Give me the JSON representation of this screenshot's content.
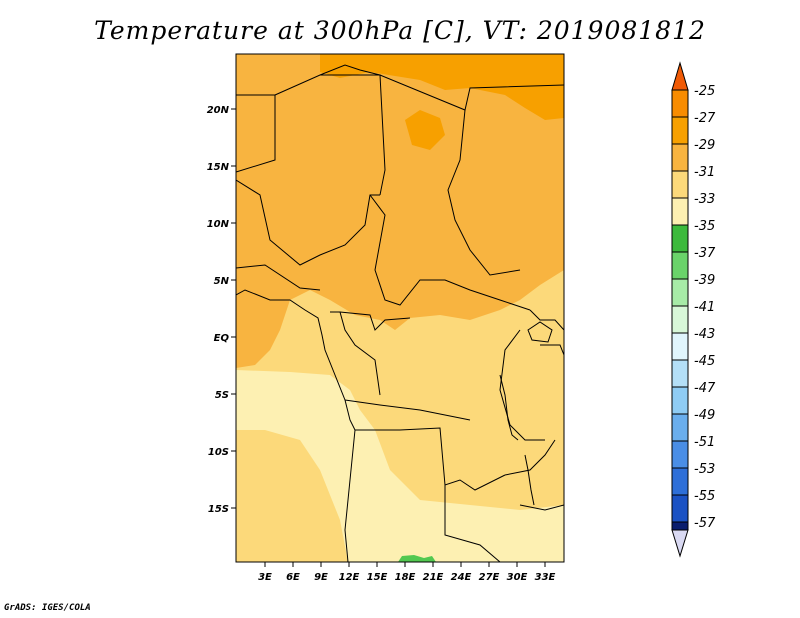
{
  "title": "Temperature at 300hPa [C], VT: 2019081812",
  "credit": "GrADS: IGES/COLA",
  "map": {
    "lat_labels": [
      "20N",
      "15N",
      "10N",
      "5N",
      "EQ",
      "5S",
      "10S",
      "15S"
    ],
    "lon_labels": [
      "3E",
      "6E",
      "9E",
      "12E",
      "15E",
      "18E",
      "21E",
      "24E",
      "27E",
      "30E",
      "33E"
    ],
    "field_colors": {
      "c27_29": "#f7a000",
      "c29_31": "#f8b440",
      "c31_33": "#fcd97a",
      "c33_35": "#fdf0b2",
      "c35_37": "#52c850",
      "border": "#000000"
    }
  },
  "colorbar": {
    "labels": [
      "-25",
      "-27",
      "-29",
      "-31",
      "-33",
      "-35",
      "-37",
      "-39",
      "-41",
      "-43",
      "-45",
      "-47",
      "-49",
      "-51",
      "-53",
      "-55",
      "-57"
    ],
    "colors": [
      "#f05a05",
      "#f88c00",
      "#f7a000",
      "#f8b440",
      "#fcd97a",
      "#fdf0b2",
      "#3cba3c",
      "#6ad36a",
      "#a7eba7",
      "#d8f7d8",
      "#e1f5fc",
      "#b4dff7",
      "#8fccf4",
      "#6aaeed",
      "#4a8ee6",
      "#2e6fd8",
      "#1b52c4",
      "#0b3aa8",
      "#0a1e6e",
      "#d9d9f2"
    ]
  }
}
